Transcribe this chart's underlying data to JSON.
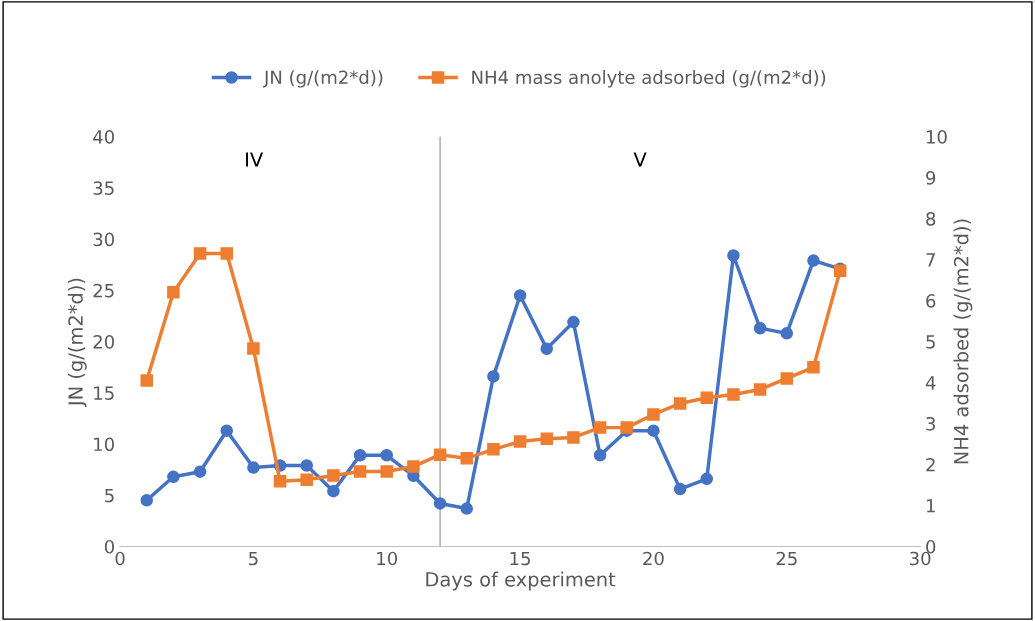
{
  "chart_data": {
    "type": "line",
    "xlabel": "Days of experiment",
    "ylabel": "JN (g/(m2*d))",
    "y2label": "NH4 adsorbed (g/(m2*d))",
    "xlim": [
      0,
      30
    ],
    "xticks": [
      0,
      5,
      10,
      15,
      20,
      25,
      30
    ],
    "ylim": [
      0,
      40
    ],
    "yticks": [
      0,
      5,
      10,
      15,
      20,
      25,
      30,
      35,
      40
    ],
    "y2lim": [
      0,
      10
    ],
    "y2ticks": [
      0,
      1,
      2,
      3,
      4,
      5,
      6,
      7,
      8,
      9,
      10
    ],
    "legend": "top",
    "line_style": "solid",
    "x": [
      1,
      2,
      3,
      4,
      5,
      6,
      7,
      8,
      9,
      10,
      11,
      12,
      13,
      14,
      15,
      16,
      17,
      18,
      19,
      20,
      21,
      22,
      23,
      24,
      25,
      26,
      27
    ],
    "series": [
      {
        "name": "JN (g/(m2*d))",
        "color": "#4472c4",
        "marker": "circle",
        "values": [
          4.5,
          6.8,
          7.3,
          11.3,
          7.7,
          7.9,
          7.9,
          5.4,
          8.9,
          8.9,
          6.9,
          4.2,
          3.7,
          16.6,
          24.5,
          19.3,
          21.9,
          8.9,
          11.3,
          11.3,
          5.6,
          6.6,
          28.4,
          21.3,
          20.8,
          27.9,
          27.1
        ]
      },
      {
        "name": "NH4 mass anolyte adsorbed (g/(m2*d))",
        "color": "#ed7d31",
        "marker": "square",
        "axis": "y2",
        "values": [
          4.05,
          6.2,
          7.15,
          7.15,
          4.83,
          1.59,
          1.63,
          1.73,
          1.83,
          1.83,
          1.95,
          2.24,
          2.15,
          2.37,
          2.56,
          2.63,
          2.66,
          2.9,
          2.9,
          3.22,
          3.49,
          3.63,
          3.71,
          3.83,
          4.1,
          4.37,
          6.73
        ]
      }
    ],
    "ref_lines": [
      {
        "axis": "x",
        "value": 12,
        "color": "#a6a6a6",
        "line_style": "solid"
      }
    ],
    "annotations": [
      "IV",
      "V"
    ]
  }
}
